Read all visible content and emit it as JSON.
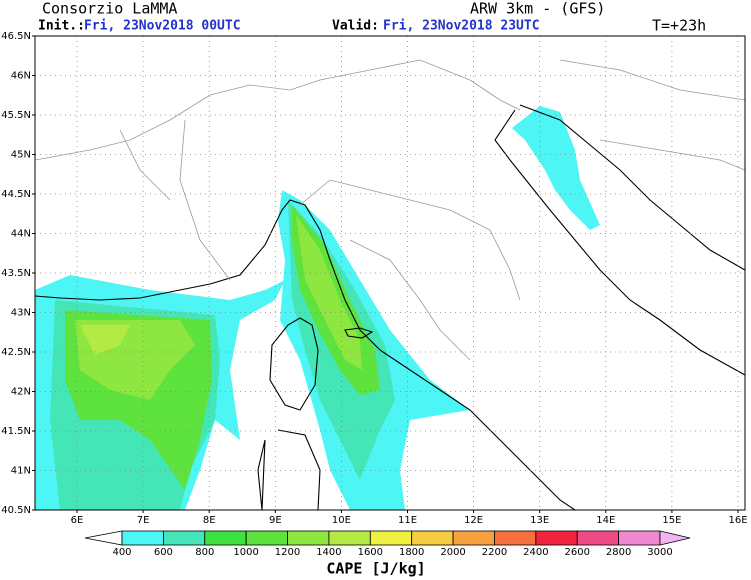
{
  "header": {
    "title": "Consorzio LaMMA",
    "model": "ARW 3km - (GFS)",
    "init_label": "Init.:",
    "init": "Fri, 23Nov2018 00UTC",
    "valid_label": "Valid:",
    "valid": "Fri, 23Nov2018 23UTC",
    "lead": "T=+23h"
  },
  "map": {
    "lat_ticks": [
      {
        "value": 40.5,
        "label": "40.5N"
      },
      {
        "value": 41,
        "label": "41N"
      },
      {
        "value": 41.5,
        "label": "41.5N"
      },
      {
        "value": 42,
        "label": "42N"
      },
      {
        "value": 42.5,
        "label": "42.5N"
      },
      {
        "value": 43,
        "label": "43N"
      },
      {
        "value": 43.5,
        "label": "43.5N"
      },
      {
        "value": 44,
        "label": "44N"
      },
      {
        "value": 44.5,
        "label": "44.5N"
      },
      {
        "value": 45,
        "label": "45N"
      },
      {
        "value": 45.5,
        "label": "45.5N"
      },
      {
        "value": 46,
        "label": "46N"
      },
      {
        "value": 46.5,
        "label": "46.5N"
      }
    ],
    "lon_ticks": [
      {
        "value": 6,
        "label": "6E"
      },
      {
        "value": 7,
        "label": "7E"
      },
      {
        "value": 8,
        "label": "8E"
      },
      {
        "value": 9,
        "label": "9E"
      },
      {
        "value": 10,
        "label": "10E"
      },
      {
        "value": 11,
        "label": "11E"
      },
      {
        "value": 12,
        "label": "12E"
      },
      {
        "value": 13,
        "label": "13E"
      },
      {
        "value": 14,
        "label": "14E"
      },
      {
        "value": 15,
        "label": "15E"
      },
      {
        "value": 16,
        "label": "16E"
      }
    ]
  },
  "colorbar": {
    "title": "CAPE [J/kg]",
    "levels": [
      400,
      600,
      800,
      1000,
      1200,
      1400,
      1600,
      1800,
      2000,
      2200,
      2400,
      2600,
      2800,
      3000
    ],
    "colors": [
      "#4ef5f5",
      "#44e6b8",
      "#3ee23e",
      "#5ee23e",
      "#8ee640",
      "#b4ea44",
      "#f0f040",
      "#f6cc40",
      "#f6a03e",
      "#f6703e",
      "#f0243c",
      "#f04a86",
      "#f088d0"
    ],
    "under_color": "#ffffff",
    "over_color": "#f4b4f4"
  }
}
